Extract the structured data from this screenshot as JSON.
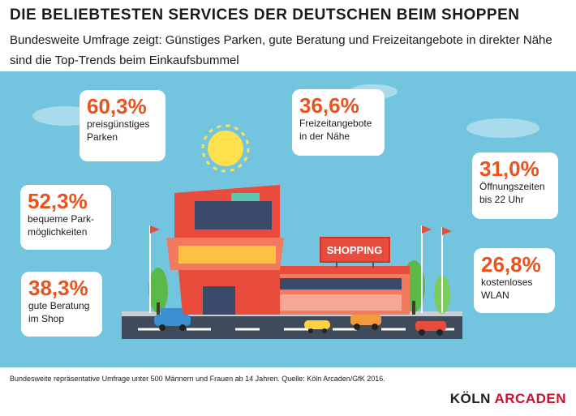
{
  "header": {
    "title": "DIE BELIEBTESTEN SERVICES DER DEUTSCHEN BEIM SHOPPEN",
    "subtitle": "Bundesweite Umfrage zeigt: Günstiges Parken, gute Beratung und Freizeitangebote in direkter Nähe sind die Top-Trends beim Einkaufsbummel"
  },
  "illustration": {
    "sign_text": "SHOPPING"
  },
  "footer": {
    "source": "Bundesweite repräsentative Umfrage unter 500 Männern und Frauen ab 14 Jahren. Quelle: Köln Arcaden/GfK 2016.",
    "brand_prefix": "KÖLN ",
    "brand_suffix": "ARCADEN"
  },
  "colors": {
    "sky": "#73c5df",
    "accent": "#e9541e",
    "brand_red": "#c8102e"
  },
  "chart_data": {
    "type": "table",
    "value_unit": "%",
    "items": [
      {
        "value": "60,3",
        "label": "preisgünstiges\nParken"
      },
      {
        "value": "52,3",
        "label": "bequeme Park-\nmöglichkeiten"
      },
      {
        "value": "38,3",
        "label": "gute Beratung\nim Shop"
      },
      {
        "value": "36,6",
        "label": "Freizeitangebote\nin der Nähe"
      },
      {
        "value": "31,0",
        "label": "Öffnungszeiten\nbis 22 Uhr"
      },
      {
        "value": "26,8",
        "label": "kostenloses\nWLAN"
      }
    ]
  }
}
